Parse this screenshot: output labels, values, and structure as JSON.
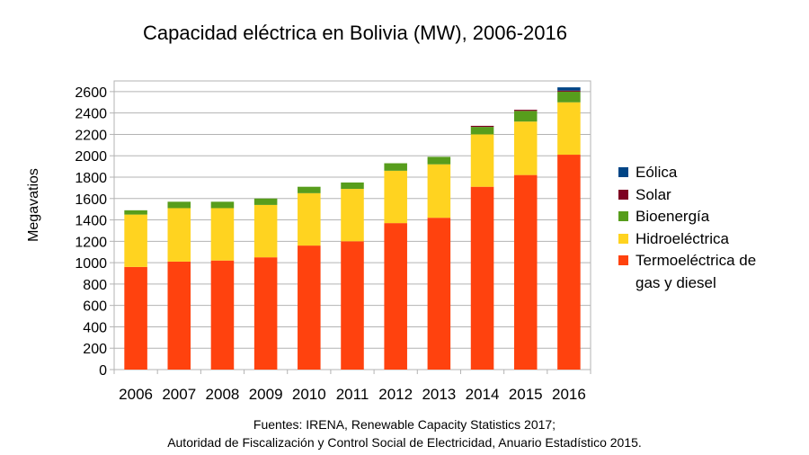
{
  "chart_data": {
    "type": "bar",
    "stacked": true,
    "title": "Capacidad eléctrica en Bolivia (MW), 2006-2016",
    "xlabel": "",
    "ylabel": "Megavatios",
    "ylim": [
      0,
      2700
    ],
    "yticks": [
      0,
      200,
      400,
      600,
      800,
      1000,
      1200,
      1400,
      1600,
      1800,
      2000,
      2200,
      2400,
      2600
    ],
    "grid": true,
    "legend_position": "right",
    "categories": [
      "2006",
      "2007",
      "2008",
      "2009",
      "2010",
      "2011",
      "2012",
      "2013",
      "2014",
      "2015",
      "2016"
    ],
    "series": [
      {
        "name": "Termoeléctrica de gas y diesel",
        "color": "#ff420e",
        "values": [
          960,
          1010,
          1020,
          1050,
          1160,
          1200,
          1370,
          1420,
          1710,
          1820,
          2010
        ]
      },
      {
        "name": "Hidroeléctrica",
        "color": "#ffd320",
        "values": [
          490,
          500,
          490,
          490,
          490,
          490,
          490,
          500,
          490,
          500,
          490
        ]
      },
      {
        "name": "Bioenergía",
        "color": "#579d1c",
        "values": [
          40,
          60,
          60,
          60,
          60,
          60,
          70,
          70,
          70,
          100,
          100
        ]
      },
      {
        "name": "Solar",
        "color": "#7e0021",
        "values": [
          0,
          0,
          0,
          0,
          0,
          0,
          0,
          0,
          10,
          10,
          10
        ]
      },
      {
        "name": "Eólica",
        "color": "#004586",
        "values": [
          0,
          0,
          0,
          0,
          0,
          0,
          0,
          0,
          0,
          0,
          30
        ]
      }
    ]
  },
  "legend": {
    "items": [
      {
        "label": "Eólica",
        "color": "#004586"
      },
      {
        "label": "Solar",
        "color": "#7e0021"
      },
      {
        "label": "Bioenergía",
        "color": "#579d1c"
      },
      {
        "label": "Hidroeléctrica",
        "color": "#ffd320"
      },
      {
        "label": "Termoeléctrica de gas y diesel",
        "color": "#ff420e"
      }
    ]
  },
  "source": {
    "line1": "Fuentes: IRENA, Renewable Capacity Statistics 2017;",
    "line2": "Autoridad de Fiscalización y Control Social de Electricidad, Anuario Estadístico 2015."
  }
}
